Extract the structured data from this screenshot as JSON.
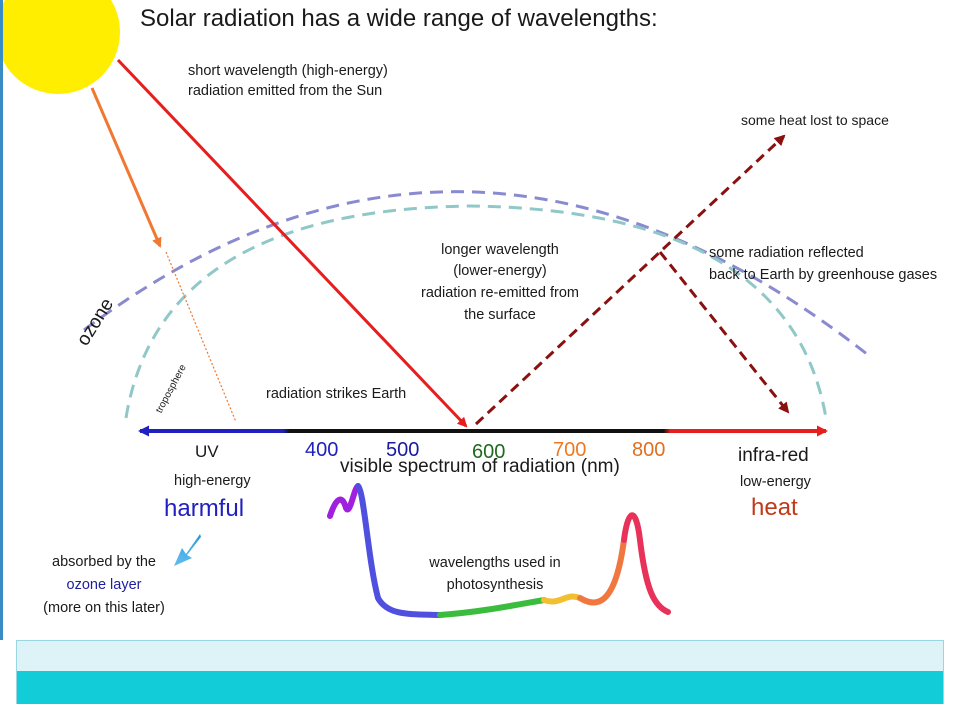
{
  "title": "Solar radiation has a wide range of wavelengths:",
  "labels": {
    "short_wave_1": "short wavelength (high-energy)",
    "short_wave_2": "radiation emitted from the Sun",
    "heat_lost": "some heat lost to space",
    "long_wave_1": "longer wavelength",
    "long_wave_2": "(lower-energy)",
    "long_wave_3": "radiation re-emitted from",
    "long_wave_4": "the surface",
    "reflected_1": "some radiation reflected",
    "reflected_2": "back to Earth by greenhouse gases",
    "ozone": "ozone",
    "troposphere": "troposphere",
    "strikes": "radiation strikes Earth"
  },
  "spectrum": {
    "uv": "UV",
    "nm_400": "400",
    "nm_500": "500",
    "nm_600": "600",
    "nm_700": "700",
    "nm_800": "800",
    "axis_label": "visible spectrum of radiation (nm)",
    "infra_red": "infra-red",
    "high_energy": "high-energy",
    "harmful": "harmful",
    "low_energy": "low-energy",
    "heat": "heat",
    "absorbed_1": "absorbed by the",
    "absorbed_2": "ozone layer",
    "absorbed_3": "(more on this later)",
    "photo_1": "wavelengths used in",
    "photo_2": "photosynthesis"
  },
  "colors": {
    "sun": "#ffee00",
    "incoming": "#e61e1e",
    "orange_ray": "#f07830",
    "reemitted": "#8b1010",
    "ozone_arc": "#8a8ad0",
    "tropo_arc": "#90c8c8",
    "uv_blue": "#2020c0",
    "nm_500": "#1a1aa0",
    "nm_600": "#1e6a1e",
    "nm_700": "#f07820",
    "nm_800": "#e07020",
    "heat": "#c03a1a",
    "ozone_text": "#1e1ea0",
    "footer_light": "#ddf3f8",
    "footer_dark": "#12cdd8"
  }
}
